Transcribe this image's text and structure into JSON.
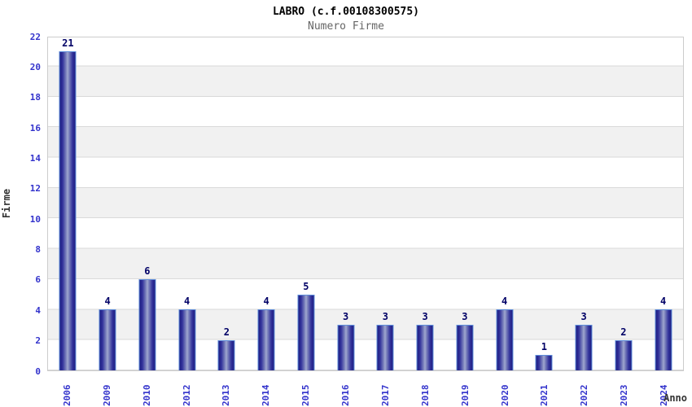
{
  "header": {
    "title": "LABRO (c.f.00108300575)",
    "subtitle": "Numero Firme"
  },
  "chart_data": {
    "type": "bar",
    "title": "LABRO (c.f.00108300575)",
    "subtitle": "Numero Firme",
    "xlabel": "Anno",
    "ylabel": "Firme",
    "categories": [
      "2006",
      "2009",
      "2010",
      "2012",
      "2013",
      "2014",
      "2015",
      "2016",
      "2017",
      "2018",
      "2019",
      "2020",
      "2021",
      "2022",
      "2023",
      "2024"
    ],
    "values": [
      21,
      4,
      6,
      4,
      2,
      4,
      5,
      3,
      3,
      3,
      3,
      4,
      1,
      3,
      2,
      4
    ],
    "ylim": [
      0,
      22
    ],
    "yticks": [
      0,
      2,
      4,
      6,
      8,
      10,
      12,
      14,
      16,
      18,
      20,
      22
    ],
    "grid": "horizontal-bands",
    "legend": "none",
    "colors": {
      "bar_dark": "#1e1e82",
      "bar_light": "#a4abd4",
      "bar_border": "#5f8edb",
      "tick_label": "#3333cc",
      "value_label": "#000066",
      "band_gray": "#f1f1f1",
      "gridline": "#d9d9d9",
      "subtitle_gray": "#666666",
      "axis_title": "#333333"
    }
  }
}
